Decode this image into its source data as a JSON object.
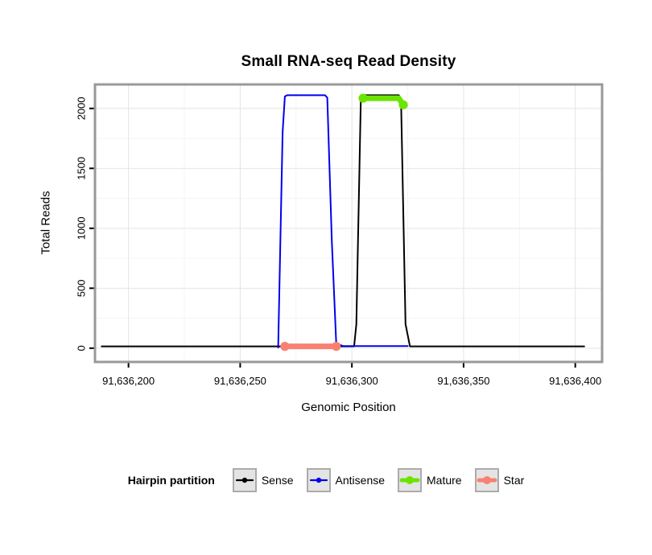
{
  "chart_data": {
    "type": "line",
    "title": "Small RNA-seq Read Density",
    "xlabel": "Genomic Position",
    "ylabel": "Total Reads",
    "legend_title": "Hairpin partition",
    "legend_position": "bottom",
    "grid": true,
    "xlim": [
      91636185,
      91636412
    ],
    "ylim": [
      -115,
      2200
    ],
    "xticks": [
      91636200,
      91636250,
      91636300,
      91636350,
      91636400
    ],
    "xtick_labels": [
      "91,636,200",
      "91,636,250",
      "91,636,300",
      "91,636,350",
      "91,636,400"
    ],
    "yticks": [
      0,
      500,
      1000,
      1500,
      2000
    ],
    "ytick_labels": [
      "0",
      "500",
      "1000",
      "1500",
      "2000"
    ],
    "colors": {
      "grid_major": "#E4E4E4",
      "grid_minor": "#F4F4F4",
      "panel_border": "#999999",
      "axis_tick": "#000000",
      "legend_box_bg": "#E4E4E4",
      "legend_box_border": "#ABABAB"
    },
    "series": [
      {
        "name": "Sense",
        "color": "#000000",
        "width": 2,
        "end_dots": false,
        "points": [
          [
            91636188,
            15
          ],
          [
            91636301,
            15
          ],
          [
            91636302,
            200
          ],
          [
            91636304,
            2090
          ],
          [
            91636305,
            2110
          ],
          [
            91636321,
            2110
          ],
          [
            91636322,
            2080
          ],
          [
            91636324,
            200
          ],
          [
            91636326,
            15
          ],
          [
            91636404,
            15
          ]
        ]
      },
      {
        "name": "Antisense",
        "color": "#0000EE",
        "width": 2,
        "end_dots": false,
        "points": [
          [
            91636267,
            5
          ],
          [
            91636269,
            1800
          ],
          [
            91636270,
            2100
          ],
          [
            91636271,
            2110
          ],
          [
            91636288,
            2110
          ],
          [
            91636289,
            2090
          ],
          [
            91636291,
            900
          ],
          [
            91636293,
            40
          ],
          [
            91636296,
            18
          ],
          [
            91636325,
            18
          ]
        ]
      },
      {
        "name": "Mature",
        "color": "#6BE400",
        "width": 7,
        "end_dots": true,
        "points": [
          [
            91636305,
            2085
          ],
          [
            91636321,
            2085
          ],
          [
            91636323,
            2030
          ]
        ]
      },
      {
        "name": "Star",
        "color": "#FA8072",
        "width": 7,
        "end_dots": true,
        "points": [
          [
            91636270,
            15
          ],
          [
            91636293,
            15
          ]
        ]
      }
    ]
  }
}
